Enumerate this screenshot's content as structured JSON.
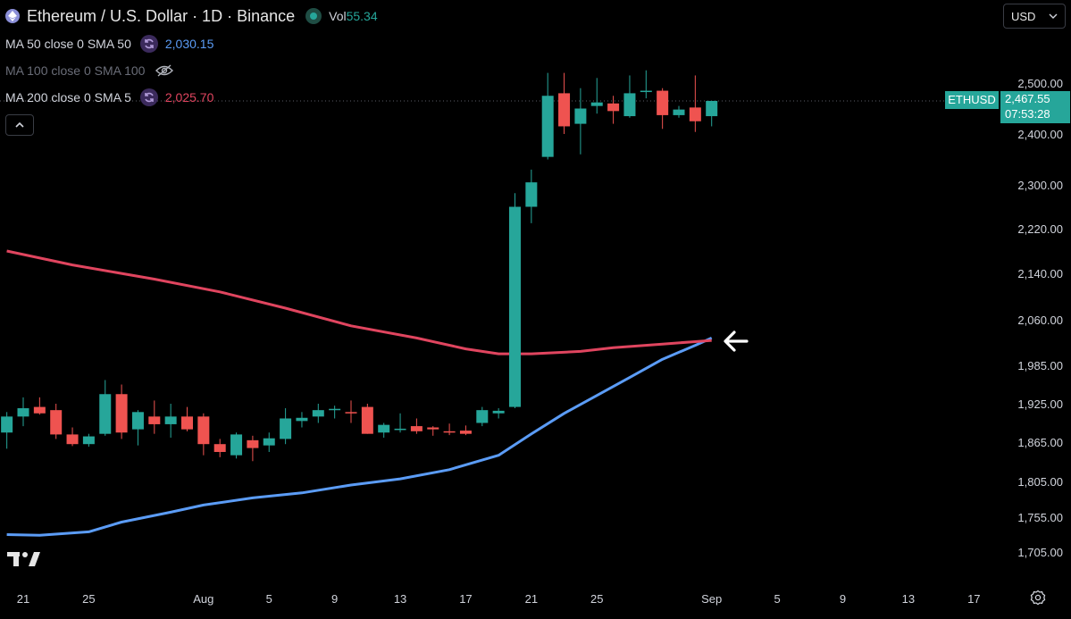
{
  "header": {
    "title": "Ethereum / U.S. Dollar · 1D · Binance",
    "vol_label": "Vol",
    "vol_value": "55.34"
  },
  "indicators": [
    {
      "label": "MA 50 close 0 SMA 50",
      "value": "2,030.15",
      "color": "#5b9cf6",
      "visible": true
    },
    {
      "label": "MA 100 close 0 SMA 100",
      "value": "",
      "visible": false
    },
    {
      "label": "MA 200 close 0 SMA 5",
      "value": "2,025.70",
      "color": "#e0455f",
      "visible": true
    }
  ],
  "currency_selector": {
    "value": "USD"
  },
  "price_tag": {
    "symbol": "ETHUSD",
    "price": "2,467.55",
    "countdown": "07:53:28"
  },
  "colors": {
    "up": "#26a69a",
    "down": "#ef5350",
    "ma50": "#5b9cf6",
    "ma200": "#e0455f",
    "background": "#000000"
  },
  "chart_data": {
    "type": "candlestick",
    "y_ticks": [
      "2,500.00",
      "2,400.00",
      "2,300.00",
      "2,220.00",
      "2,140.00",
      "2,060.00",
      "1,985.00",
      "1,925.00",
      "1,865.00",
      "1,805.00",
      "1,755.00",
      "1,705.00"
    ],
    "x_ticks": [
      {
        "label": "21",
        "day": 0
      },
      {
        "label": "25",
        "day": 4
      },
      {
        "label": "Aug",
        "day": 11
      },
      {
        "label": "5",
        "day": 15
      },
      {
        "label": "9",
        "day": 19
      },
      {
        "label": "13",
        "day": 23
      },
      {
        "label": "17",
        "day": 27
      },
      {
        "label": "21",
        "day": 31
      },
      {
        "label": "25",
        "day": 35
      },
      {
        "label": "Sep",
        "day": 42
      },
      {
        "label": "5",
        "day": 46
      },
      {
        "label": "9",
        "day": 50
      },
      {
        "label": "13",
        "day": 54
      },
      {
        "label": "17",
        "day": 58
      }
    ],
    "candles": [
      {
        "day": -1,
        "o": 1880,
        "h": 1912,
        "l": 1855,
        "c": 1905
      },
      {
        "day": 0,
        "o": 1905,
        "h": 1935,
        "l": 1890,
        "c": 1918
      },
      {
        "day": 1,
        "o": 1920,
        "h": 1935,
        "l": 1908,
        "c": 1910
      },
      {
        "day": 2,
        "o": 1915,
        "h": 1925,
        "l": 1870,
        "c": 1877
      },
      {
        "day": 3,
        "o": 1877,
        "h": 1888,
        "l": 1859,
        "c": 1862
      },
      {
        "day": 4,
        "o": 1862,
        "h": 1878,
        "l": 1858,
        "c": 1874
      },
      {
        "day": 5,
        "o": 1878,
        "h": 1962,
        "l": 1875,
        "c": 1940
      },
      {
        "day": 6,
        "o": 1940,
        "h": 1955,
        "l": 1870,
        "c": 1880
      },
      {
        "day": 7,
        "o": 1885,
        "h": 1915,
        "l": 1860,
        "c": 1912
      },
      {
        "day": 8,
        "o": 1905,
        "h": 1930,
        "l": 1878,
        "c": 1893
      },
      {
        "day": 9,
        "o": 1893,
        "h": 1925,
        "l": 1872,
        "c": 1905
      },
      {
        "day": 10,
        "o": 1905,
        "h": 1920,
        "l": 1882,
        "c": 1885
      },
      {
        "day": 11,
        "o": 1905,
        "h": 1910,
        "l": 1845,
        "c": 1862
      },
      {
        "day": 12,
        "o": 1862,
        "h": 1870,
        "l": 1842,
        "c": 1850
      },
      {
        "day": 13,
        "o": 1845,
        "h": 1880,
        "l": 1840,
        "c": 1877
      },
      {
        "day": 14,
        "o": 1868,
        "h": 1875,
        "l": 1836,
        "c": 1856
      },
      {
        "day": 15,
        "o": 1860,
        "h": 1880,
        "l": 1850,
        "c": 1871
      },
      {
        "day": 16,
        "o": 1870,
        "h": 1918,
        "l": 1862,
        "c": 1902
      },
      {
        "day": 17,
        "o": 1898,
        "h": 1912,
        "l": 1888,
        "c": 1903
      },
      {
        "day": 18,
        "o": 1905,
        "h": 1925,
        "l": 1895,
        "c": 1915
      },
      {
        "day": 19,
        "o": 1915,
        "h": 1922,
        "l": 1902,
        "c": 1917
      },
      {
        "day": 20,
        "o": 1912,
        "h": 1930,
        "l": 1895,
        "c": 1910
      },
      {
        "day": 21,
        "o": 1920,
        "h": 1925,
        "l": 1878,
        "c": 1878
      },
      {
        "day": 22,
        "o": 1880,
        "h": 1895,
        "l": 1872,
        "c": 1892
      },
      {
        "day": 23,
        "o": 1885,
        "h": 1910,
        "l": 1880,
        "c": 1886
      },
      {
        "day": 24,
        "o": 1890,
        "h": 1902,
        "l": 1878,
        "c": 1882
      },
      {
        "day": 25,
        "o": 1888,
        "h": 1890,
        "l": 1875,
        "c": 1885
      },
      {
        "day": 26,
        "o": 1882,
        "h": 1894,
        "l": 1876,
        "c": 1880
      },
      {
        "day": 27,
        "o": 1883,
        "h": 1891,
        "l": 1876,
        "c": 1878
      },
      {
        "day": 28,
        "o": 1895,
        "h": 1920,
        "l": 1890,
        "c": 1915
      },
      {
        "day": 29,
        "o": 1910,
        "h": 1918,
        "l": 1902,
        "c": 1914
      },
      {
        "day": 30,
        "o": 1920,
        "h": 2285,
        "l": 1918,
        "c": 2260
      },
      {
        "day": 31,
        "o": 2260,
        "h": 2330,
        "l": 2230,
        "c": 2305
      },
      {
        "day": 32,
        "o": 2355,
        "h": 2520,
        "l": 2350,
        "c": 2475
      },
      {
        "day": 33,
        "o": 2480,
        "h": 2520,
        "l": 2400,
        "c": 2415
      },
      {
        "day": 34,
        "o": 2420,
        "h": 2490,
        "l": 2360,
        "c": 2450
      },
      {
        "day": 35,
        "o": 2455,
        "h": 2510,
        "l": 2440,
        "c": 2462
      },
      {
        "day": 36,
        "o": 2460,
        "h": 2475,
        "l": 2420,
        "c": 2445
      },
      {
        "day": 37,
        "o": 2435,
        "h": 2515,
        "l": 2432,
        "c": 2480
      },
      {
        "day": 38,
        "o": 2484,
        "h": 2525,
        "l": 2470,
        "c": 2485
      },
      {
        "day": 39,
        "o": 2485,
        "h": 2490,
        "l": 2410,
        "c": 2437
      },
      {
        "day": 40,
        "o": 2437,
        "h": 2455,
        "l": 2432,
        "c": 2448
      },
      {
        "day": 41,
        "o": 2452,
        "h": 2515,
        "l": 2404,
        "c": 2425
      },
      {
        "day": 42,
        "o": 2435,
        "h": 2464,
        "l": 2415,
        "c": 2465
      }
    ],
    "series": [
      {
        "points": [
          [
            -1,
            1730
          ],
          [
            1,
            1729
          ],
          [
            4,
            1734
          ],
          [
            6,
            1748
          ],
          [
            9,
            1762
          ],
          [
            11,
            1772
          ],
          [
            14,
            1782
          ],
          [
            17,
            1789
          ],
          [
            20,
            1800
          ],
          [
            23,
            1809
          ],
          [
            26,
            1823
          ],
          [
            29,
            1845
          ],
          [
            31,
            1878
          ],
          [
            33,
            1910
          ],
          [
            35,
            1938
          ],
          [
            37,
            1966
          ],
          [
            39,
            1995
          ],
          [
            41,
            2018
          ],
          [
            42,
            2030
          ]
        ]
      },
      {
        "points": [
          [
            -1,
            2180
          ],
          [
            3,
            2155
          ],
          [
            8,
            2130
          ],
          [
            12,
            2108
          ],
          [
            16,
            2080
          ],
          [
            20,
            2050
          ],
          [
            24,
            2030
          ],
          [
            27,
            2012
          ],
          [
            29,
            2004
          ],
          [
            31,
            2004
          ],
          [
            34,
            2008
          ],
          [
            36,
            2014
          ],
          [
            39,
            2020
          ],
          [
            42,
            2026
          ]
        ]
      }
    ]
  }
}
